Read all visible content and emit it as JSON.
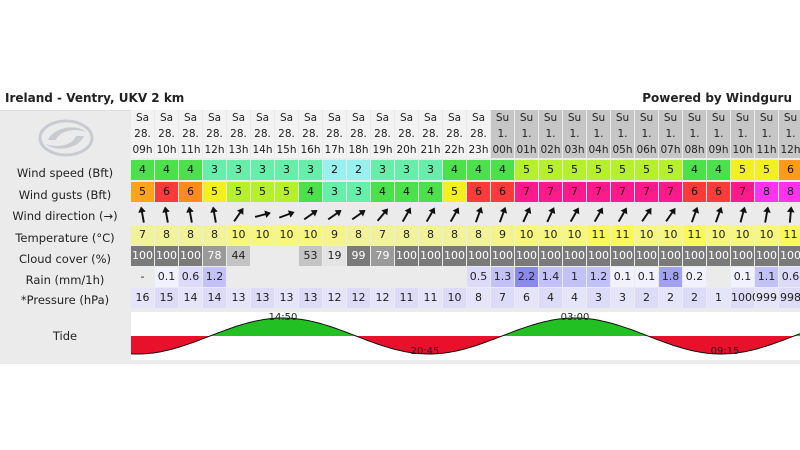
{
  "header": {
    "location": "Ireland - Ventry, UKV 2 km",
    "powered": "Powered by Windguru"
  },
  "row_labels": {
    "wind_speed": "Wind speed (Bft)",
    "wind_gusts": "Wind gusts (Bft)",
    "wind_direction": "Wind direction (→)",
    "temperature": "Temperature (°C)",
    "cloud_cover": "Cloud cover (%)",
    "rain": "Rain (mm/1h)",
    "pressure": "*Pressure (hPa)",
    "tide": "Tide"
  },
  "hours": [
    {
      "day": "Sa",
      "date": "28.",
      "hour": "09h"
    },
    {
      "day": "Sa",
      "date": "28.",
      "hour": "10h"
    },
    {
      "day": "Sa",
      "date": "28.",
      "hour": "11h"
    },
    {
      "day": "Sa",
      "date": "28.",
      "hour": "12h"
    },
    {
      "day": "Sa",
      "date": "28.",
      "hour": "13h"
    },
    {
      "day": "Sa",
      "date": "28.",
      "hour": "14h"
    },
    {
      "day": "Sa",
      "date": "28.",
      "hour": "15h"
    },
    {
      "day": "Sa",
      "date": "28.",
      "hour": "16h"
    },
    {
      "day": "Sa",
      "date": "28.",
      "hour": "17h"
    },
    {
      "day": "Sa",
      "date": "28.",
      "hour": "18h"
    },
    {
      "day": "Sa",
      "date": "28.",
      "hour": "19h"
    },
    {
      "day": "Sa",
      "date": "28.",
      "hour": "20h"
    },
    {
      "day": "Sa",
      "date": "28.",
      "hour": "21h"
    },
    {
      "day": "Sa",
      "date": "28.",
      "hour": "22h"
    },
    {
      "day": "Sa",
      "date": "28.",
      "hour": "23h"
    },
    {
      "day": "Su",
      "date": "1.",
      "hour": "00h"
    },
    {
      "day": "Su",
      "date": "1.",
      "hour": "01h"
    },
    {
      "day": "Su",
      "date": "1.",
      "hour": "02h"
    },
    {
      "day": "Su",
      "date": "1.",
      "hour": "03h"
    },
    {
      "day": "Su",
      "date": "1.",
      "hour": "04h"
    },
    {
      "day": "Su",
      "date": "1.",
      "hour": "05h"
    },
    {
      "day": "Su",
      "date": "1.",
      "hour": "06h"
    },
    {
      "day": "Su",
      "date": "1.",
      "hour": "07h"
    },
    {
      "day": "Su",
      "date": "1.",
      "hour": "08h"
    },
    {
      "day": "Su",
      "date": "1.",
      "hour": "09h"
    },
    {
      "day": "Su",
      "date": "1.",
      "hour": "10h"
    },
    {
      "day": "Su",
      "date": "1.",
      "hour": "11h"
    },
    {
      "day": "Su",
      "date": "1.",
      "hour": "12h"
    }
  ],
  "wind_speed": [
    "4",
    "4",
    "4",
    "3",
    "3",
    "3",
    "3",
    "3",
    "2",
    "2",
    "3",
    "3",
    "3",
    "4",
    "4",
    "4",
    "5",
    "5",
    "5",
    "5",
    "5",
    "5",
    "5",
    "4",
    "4",
    "5",
    "5",
    "6"
  ],
  "wind_speed_colors": [
    "#4ce04c",
    "#4ce04c",
    "#4ce04c",
    "#66eeaa",
    "#66eeaa",
    "#66eeaa",
    "#66eeaa",
    "#66eeaa",
    "#99f0ee",
    "#99f0ee",
    "#66eeaa",
    "#66eeaa",
    "#66eeaa",
    "#4ce04c",
    "#4ce04c",
    "#4ce04c",
    "#b6f02c",
    "#b6f02c",
    "#b6f02c",
    "#b6f02c",
    "#b6f02c",
    "#b6f02c",
    "#b6f02c",
    "#4ce04c",
    "#4ce04c",
    "#f2f020",
    "#f2f020",
    "#ff9a1a"
  ],
  "wind_gusts": [
    "5",
    "6",
    "6",
    "5",
    "5",
    "5",
    "5",
    "4",
    "3",
    "3",
    "4",
    "4",
    "4",
    "5",
    "6",
    "6",
    "7",
    "7",
    "7",
    "7",
    "7",
    "7",
    "7",
    "6",
    "6",
    "7",
    "8",
    "8"
  ],
  "wind_gusts_colors": [
    "#ffa31a",
    "#ff3a3a",
    "#ff8c1a",
    "#f2f020",
    "#b6f02c",
    "#b6f02c",
    "#b6f02c",
    "#4ce04c",
    "#66eeaa",
    "#66eeaa",
    "#4ce04c",
    "#4ce04c",
    "#4ce04c",
    "#f2f020",
    "#ff3a3a",
    "#ff3a3a",
    "#ff1a8c",
    "#ff1a8c",
    "#ff1a8c",
    "#ff1a8c",
    "#ff1a8c",
    "#ff1a8c",
    "#ff1a8c",
    "#ff3a3a",
    "#ff3a3a",
    "#ff1a8c",
    "#ff33ee",
    "#ff33ee"
  ],
  "wind_direction_deg": [
    350,
    350,
    350,
    350,
    35,
    75,
    70,
    55,
    55,
    55,
    40,
    30,
    30,
    30,
    20,
    20,
    25,
    25,
    30,
    30,
    30,
    35,
    35,
    20,
    20,
    15,
    10,
    5
  ],
  "temperature": [
    "7",
    "8",
    "8",
    "8",
    "10",
    "10",
    "10",
    "10",
    "9",
    "8",
    "7",
    "8",
    "8",
    "8",
    "8",
    "9",
    "10",
    "10",
    "10",
    "11",
    "11",
    "10",
    "10",
    "11",
    "10",
    "10",
    "10",
    "11"
  ],
  "temperature_colors": [
    "#f2f29a",
    "#f2f29a",
    "#f2f29a",
    "#f2f29a",
    "#f7f77a",
    "#f7f77a",
    "#f7f77a",
    "#f7f77a",
    "#f4f48a",
    "#f2f29a",
    "#f2f29a",
    "#f2f29a",
    "#f2f29a",
    "#f2f29a",
    "#f2f29a",
    "#f4f48a",
    "#f7f77a",
    "#f7f77a",
    "#f7f77a",
    "#f9f95a",
    "#f9f95a",
    "#f7f77a",
    "#f7f77a",
    "#f9f95a",
    "#f7f77a",
    "#f7f77a",
    "#f7f77a",
    "#f9f95a"
  ],
  "cloud_cover": [
    "100",
    "100",
    "100",
    "78",
    "44",
    "",
    "",
    "53",
    "19",
    "99",
    "79",
    "100",
    "100",
    "100",
    "100",
    "100",
    "100",
    "100",
    "100",
    "100",
    "100",
    "100",
    "100",
    "100",
    "100",
    "100",
    "100",
    "100"
  ],
  "rain": [
    "-",
    "0.1",
    "0.6",
    "1.2",
    "",
    "",
    "",
    "",
    "",
    "",
    "",
    "",
    "",
    "",
    "0.5",
    "1.3",
    "2.2",
    "1.4",
    "1",
    "1.2",
    "0.1",
    "0.1",
    "1.8",
    "0.2",
    "",
    "0.1",
    "1.1",
    "0.6"
  ],
  "pressure": [
    "16",
    "15",
    "14",
    "14",
    "13",
    "13",
    "13",
    "13",
    "12",
    "12",
    "12",
    "11",
    "11",
    "10",
    "8",
    "7",
    "6",
    "4",
    "4",
    "3",
    "3",
    "2",
    "2",
    "2",
    "1",
    "1000",
    "999",
    "998"
  ],
  "tide": {
    "high1": "14:50",
    "low1": "20:45",
    "high2": "03:00",
    "low2": "09:15"
  }
}
